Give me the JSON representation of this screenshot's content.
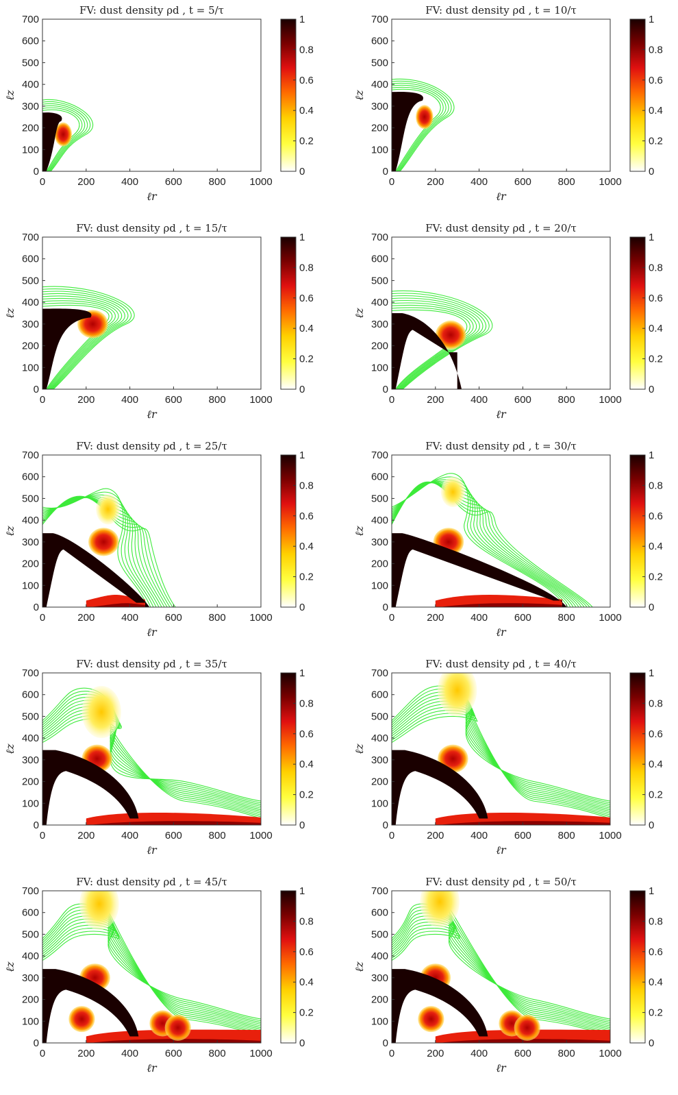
{
  "figure": {
    "panels": [
      {
        "title": "FV: dust density ρd , t = 5/τ",
        "t": 5
      },
      {
        "title": "FV: dust density ρd , t = 10/τ",
        "t": 10
      },
      {
        "title": "FV: dust density ρd , t = 15/τ",
        "t": 15
      },
      {
        "title": "FV: dust density ρd , t = 20/τ",
        "t": 20
      },
      {
        "title": "FV: dust density ρd , t = 25/τ",
        "t": 25
      },
      {
        "title": "FV: dust density ρd , t = 30/τ",
        "t": 30
      },
      {
        "title": "FV: dust density ρd , t = 35/τ",
        "t": 35
      },
      {
        "title": "FV: dust density ρd , t = 40/τ",
        "t": 40
      },
      {
        "title": "FV: dust density ρd , t = 45/τ",
        "t": 45
      },
      {
        "title": "FV: dust density ρd , t = 50/τ",
        "t": 50
      }
    ],
    "colors": {
      "contour": "#3dea3a",
      "colormap": [
        "#ffffff",
        "#ffff40",
        "#ffd000",
        "#ff6a00",
        "#e01010",
        "#7a0000",
        "#1a0000"
      ]
    }
  },
  "chart_data": {
    "type": "heatmap",
    "quantity": "dust density ρd",
    "xlabel": "ℓr",
    "ylabel": "ℓz",
    "xlim": [
      0,
      1000
    ],
    "ylim": [
      0,
      700
    ],
    "xticks": [
      "0",
      "200",
      "400",
      "600",
      "800",
      "1000"
    ],
    "yticks": [
      "0",
      "100",
      "200",
      "300",
      "400",
      "500",
      "600",
      "700"
    ],
    "colorbar": {
      "range": [
        0,
        1
      ],
      "ticks": [
        "0",
        "0.2",
        "0.4",
        "0.6",
        "0.8",
        "1"
      ]
    },
    "times": [
      5,
      10,
      15,
      20,
      25,
      30,
      35,
      40,
      45,
      50
    ],
    "frames": [
      {
        "t": 5,
        "column_top": 270,
        "column_width": 60,
        "front_r": 110,
        "plume_top": 0,
        "vortex": [
          95,
          170
        ],
        "contour_top": 340
      },
      {
        "t": 10,
        "column_top": 365,
        "column_width": 60,
        "front_r": 200,
        "plume_top": 0,
        "vortex": [
          150,
          250
        ],
        "contour_top": 450
      },
      {
        "t": 15,
        "column_top": 370,
        "column_width": 60,
        "front_r": 280,
        "plume_top": 0,
        "vortex": [
          230,
          300
        ],
        "contour_top": 470
      },
      {
        "t": 20,
        "column_top": 350,
        "column_width": 60,
        "front_r": 330,
        "plume_top": 0,
        "vortex": [
          270,
          250
        ],
        "contour_top": 480
      },
      {
        "t": 25,
        "column_top": 340,
        "column_width": 60,
        "front_r": 470,
        "plume_top": 520,
        "vortex": [
          300,
          450
        ],
        "contour_top": 550
      },
      {
        "t": 30,
        "column_top": 340,
        "column_width": 60,
        "front_r": 780,
        "plume_top": 590,
        "vortex": [
          280,
          530
        ],
        "contour_top": 620
      },
      {
        "t": 35,
        "column_top": 345,
        "column_width": 60,
        "front_r": 1000,
        "plume_top": 660,
        "vortex": [
          270,
          520
        ],
        "contour_top": 690
      },
      {
        "t": 40,
        "column_top": 345,
        "column_width": 60,
        "front_r": 1000,
        "plume_top": 690,
        "vortex": [
          300,
          620
        ],
        "contour_top": 700
      },
      {
        "t": 45,
        "column_top": 340,
        "column_width": 60,
        "front_r": 1000,
        "plume_top": 700,
        "vortex": [
          260,
          640
        ],
        "contour_top": 700
      },
      {
        "t": 50,
        "column_top": 340,
        "column_width": 60,
        "front_r": 1000,
        "plume_top": 700,
        "vortex": [
          220,
          650
        ],
        "contour_top": 700
      }
    ]
  }
}
